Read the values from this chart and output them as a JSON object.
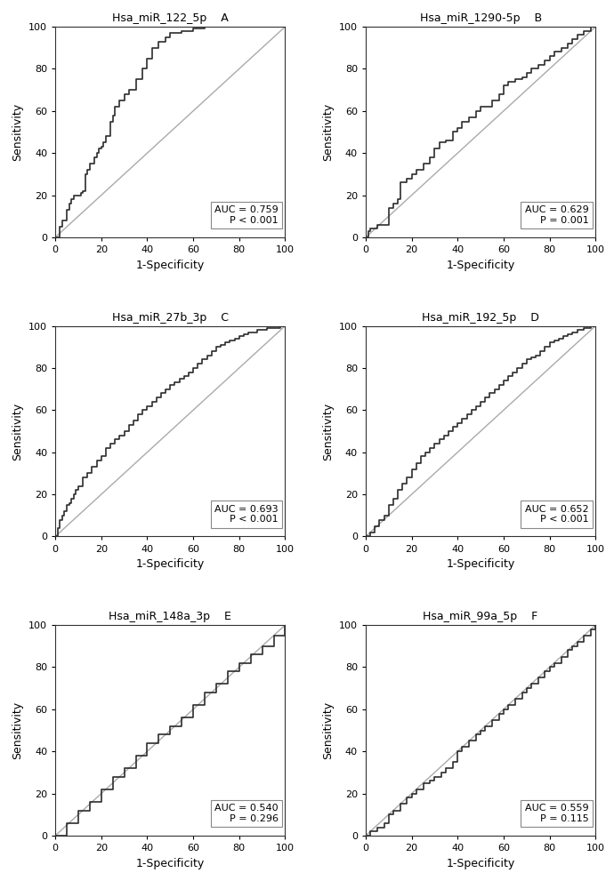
{
  "panels": [
    {
      "title": "Hsa_miR_122_5p",
      "label": "A",
      "auc": "AUC = 0.759",
      "pval": "P < 0.001",
      "roc_x": [
        0,
        2,
        3,
        5,
        6,
        7,
        8,
        9,
        10,
        11,
        12,
        13,
        14,
        15,
        16,
        17,
        18,
        19,
        20,
        21,
        22,
        24,
        25,
        26,
        28,
        30,
        32,
        35,
        38,
        40,
        42,
        45,
        48,
        50,
        55,
        60,
        65,
        70,
        75,
        80,
        85,
        90,
        95,
        100
      ],
      "roc_y": [
        0,
        5,
        8,
        13,
        16,
        18,
        20,
        20,
        20,
        21,
        22,
        30,
        32,
        35,
        35,
        38,
        40,
        42,
        43,
        45,
        48,
        55,
        58,
        62,
        65,
        68,
        70,
        75,
        80,
        85,
        90,
        93,
        95,
        97,
        98,
        99,
        100,
        100,
        100,
        100,
        100,
        100,
        100,
        100
      ]
    },
    {
      "title": "Hsa_miR_1290-5p",
      "label": "B",
      "auc": "AUC = 0.629",
      "pval": "P = 0.001",
      "roc_x": [
        0,
        1,
        2,
        5,
        10,
        12,
        14,
        15,
        18,
        20,
        22,
        25,
        28,
        30,
        32,
        35,
        38,
        40,
        42,
        45,
        48,
        50,
        55,
        58,
        60,
        62,
        65,
        68,
        70,
        72,
        75,
        78,
        80,
        82,
        85,
        88,
        90,
        92,
        95,
        98,
        100
      ],
      "roc_y": [
        0,
        3,
        4,
        6,
        14,
        16,
        18,
        26,
        28,
        30,
        32,
        35,
        38,
        42,
        45,
        46,
        50,
        52,
        55,
        57,
        60,
        62,
        65,
        68,
        72,
        74,
        75,
        76,
        78,
        80,
        82,
        84,
        86,
        88,
        90,
        92,
        94,
        96,
        98,
        100,
        100
      ]
    },
    {
      "title": "Hsa_miR_27b_3p",
      "label": "C",
      "auc": "AUC = 0.693",
      "pval": "P < 0.001",
      "roc_x": [
        0,
        1,
        2,
        3,
        4,
        5,
        6,
        7,
        8,
        9,
        10,
        12,
        14,
        16,
        18,
        20,
        22,
        24,
        26,
        28,
        30,
        32,
        34,
        36,
        38,
        40,
        42,
        44,
        46,
        48,
        50,
        52,
        54,
        56,
        58,
        60,
        62,
        64,
        66,
        68,
        70,
        72,
        74,
        76,
        78,
        80,
        82,
        84,
        86,
        88,
        90,
        92,
        95,
        98,
        100
      ],
      "roc_y": [
        0,
        4,
        8,
        10,
        12,
        15,
        16,
        18,
        20,
        22,
        24,
        28,
        30,
        33,
        36,
        38,
        42,
        44,
        46,
        48,
        50,
        53,
        55,
        58,
        60,
        62,
        64,
        66,
        68,
        70,
        72,
        73,
        75,
        76,
        78,
        80,
        82,
        84,
        86,
        88,
        90,
        91,
        92,
        93,
        94,
        95,
        96,
        97,
        97,
        98,
        98,
        99,
        99,
        100,
        100
      ]
    },
    {
      "title": "Hsa_miR_192_5p",
      "label": "D",
      "auc": "AUC = 0.652",
      "pval": "P < 0.001",
      "roc_x": [
        0,
        2,
        4,
        6,
        8,
        10,
        12,
        14,
        16,
        18,
        20,
        22,
        24,
        26,
        28,
        30,
        32,
        34,
        36,
        38,
        40,
        42,
        44,
        46,
        48,
        50,
        52,
        54,
        56,
        58,
        60,
        62,
        64,
        66,
        68,
        70,
        72,
        74,
        76,
        78,
        80,
        82,
        84,
        86,
        88,
        90,
        92,
        95,
        98,
        100
      ],
      "roc_y": [
        0,
        2,
        5,
        8,
        10,
        15,
        18,
        22,
        25,
        28,
        32,
        35,
        38,
        40,
        42,
        44,
        46,
        48,
        50,
        52,
        54,
        56,
        58,
        60,
        62,
        64,
        66,
        68,
        70,
        72,
        74,
        76,
        78,
        80,
        82,
        84,
        85,
        86,
        88,
        90,
        92,
        93,
        94,
        95,
        96,
        97,
        98,
        99,
        100,
        100
      ]
    },
    {
      "title": "Hsa_miR_148a_3p",
      "label": "E",
      "auc": "AUC = 0.540",
      "pval": "P = 0.296",
      "roc_x": [
        0,
        5,
        10,
        15,
        20,
        25,
        30,
        35,
        40,
        45,
        50,
        55,
        60,
        65,
        70,
        75,
        80,
        85,
        90,
        95,
        100
      ],
      "roc_y": [
        0,
        6,
        12,
        16,
        22,
        28,
        32,
        38,
        44,
        48,
        52,
        56,
        62,
        68,
        72,
        78,
        82,
        86,
        90,
        95,
        100
      ]
    },
    {
      "title": "Hsa_miR_99a_5p",
      "label": "F",
      "auc": "AUC = 0.559",
      "pval": "P = 0.115",
      "roc_x": [
        0,
        2,
        5,
        8,
        10,
        12,
        15,
        18,
        20,
        22,
        25,
        28,
        30,
        33,
        35,
        38,
        40,
        42,
        45,
        48,
        50,
        52,
        55,
        58,
        60,
        62,
        65,
        68,
        70,
        72,
        75,
        78,
        80,
        82,
        85,
        88,
        90,
        92,
        95,
        98,
        100
      ],
      "roc_y": [
        0,
        2,
        4,
        6,
        10,
        12,
        15,
        18,
        20,
        22,
        25,
        26,
        28,
        30,
        32,
        35,
        40,
        42,
        45,
        48,
        50,
        52,
        55,
        58,
        60,
        62,
        65,
        68,
        70,
        72,
        75,
        78,
        80,
        82,
        85,
        88,
        90,
        92,
        95,
        98,
        100
      ]
    }
  ],
  "line_color": "#2c2c2c",
  "diag_color": "#aaaaaa",
  "bg_color": "#ffffff",
  "font_size_title": 9,
  "font_size_label": 9,
  "font_size_tick": 8,
  "font_size_box": 8
}
